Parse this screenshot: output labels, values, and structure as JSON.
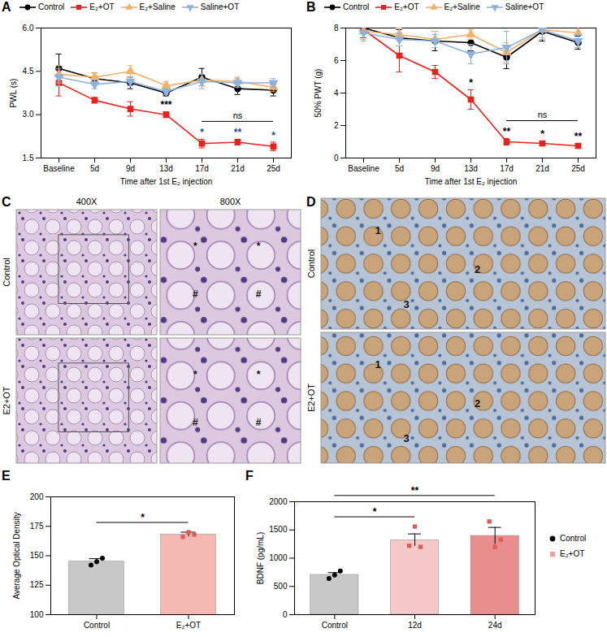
{
  "chart_data": [
    {
      "panel": "A",
      "type": "line",
      "categories": [
        "Baseline",
        "5d",
        "9d",
        "13d",
        "17d",
        "21d",
        "25d"
      ],
      "xlabel": "Time after 1st E₂ injection",
      "ylabel": "PWL (s)",
      "ylim": [
        1.5,
        6.0
      ],
      "yticks": [
        1.5,
        {
          "value": 3,
          "label": "3.0"
        },
        4.5,
        {
          "value": 6,
          "label": "6.0"
        }
      ],
      "legend": "top",
      "series": [
        {
          "name": "Control",
          "color": "#000000",
          "marker": "circle",
          "values": [
            4.6,
            4.25,
            4.1,
            3.75,
            4.3,
            3.9,
            3.85
          ],
          "errors": [
            0.5,
            0.2,
            0.2,
            0.1,
            0.3,
            0.2,
            0.2
          ]
        },
        {
          "name": "E₂+OT",
          "color": "#e8231e",
          "marker": "square",
          "values": [
            4.1,
            3.5,
            3.2,
            3.0,
            2.0,
            2.05,
            1.9
          ],
          "errors": [
            0.45,
            0.1,
            0.25,
            0.1,
            0.15,
            0.1,
            0.15
          ]
        },
        {
          "name": "E₂+Saline",
          "color": "#f5b06a",
          "marker": "triangle",
          "values": [
            4.4,
            4.3,
            4.5,
            4.0,
            4.2,
            4.15,
            3.95
          ],
          "errors": [
            0.3,
            0.15,
            0.2,
            0.15,
            0.2,
            0.15,
            0.15
          ]
        },
        {
          "name": "Saline+OT",
          "color": "#8eb1dd",
          "marker": "triangle-down",
          "values": [
            4.3,
            4.05,
            4.15,
            3.8,
            4.15,
            4.1,
            4.1
          ],
          "errors": [
            0.3,
            0.15,
            0.15,
            0.1,
            0.25,
            0.15,
            0.15
          ]
        }
      ],
      "annotations": [
        {
          "text": "***",
          "x": "13d",
          "series": "E₂+OT",
          "color": "#000000"
        },
        {
          "text": "*",
          "x": "17d",
          "series": "E₂+OT",
          "color": "#1f4e9c"
        },
        {
          "text": "**",
          "x": "21d",
          "series": "E₂+OT",
          "color": "#1f4e9c"
        },
        {
          "text": "*",
          "x": "25d",
          "series": "E₂+OT",
          "color": "#1f4e9c"
        },
        {
          "text": "ns",
          "x": [
            "17d",
            "25d"
          ],
          "series": "E₂+OT",
          "color": "#000000"
        }
      ]
    },
    {
      "panel": "B",
      "type": "line",
      "categories": [
        "Baseline",
        "5d",
        "9d",
        "13d",
        "17d",
        "21d",
        "25d"
      ],
      "xlabel": "Time after 1st E₂ injection",
      "ylabel": "50% PWT (g)",
      "ylim": [
        0,
        8
      ],
      "yticks": [
        0,
        2,
        4,
        6,
        8
      ],
      "legend": "top",
      "series": [
        {
          "name": "Control",
          "color": "#000000",
          "marker": "circle",
          "values": [
            8.0,
            7.4,
            7.2,
            7.1,
            6.2,
            7.8,
            7.1
          ],
          "errors": [
            0.6,
            0.5,
            0.6,
            0.5,
            0.7,
            0.6,
            0.4
          ]
        },
        {
          "name": "E₂+OT",
          "color": "#e8231e",
          "marker": "square",
          "values": [
            7.9,
            6.3,
            5.3,
            3.6,
            1.0,
            0.9,
            0.75
          ],
          "errors": [
            0.5,
            1.0,
            0.4,
            0.6,
            0.2,
            0.15,
            0.15
          ]
        },
        {
          "name": "E₂+Saline",
          "color": "#f5b06a",
          "marker": "triangle",
          "values": [
            7.8,
            7.6,
            7.3,
            7.6,
            6.5,
            7.9,
            7.7
          ],
          "errors": [
            0.5,
            0.4,
            0.5,
            0.3,
            0.6,
            0.5,
            0.4
          ]
        },
        {
          "name": "Saline+OT",
          "color": "#8eb1dd",
          "marker": "triangle-down",
          "values": [
            7.7,
            7.3,
            7.2,
            6.4,
            6.8,
            7.9,
            7.2
          ],
          "errors": [
            0.5,
            0.4,
            0.4,
            0.6,
            1.0,
            0.6,
            0.4
          ]
        }
      ],
      "annotations": [
        {
          "text": "*",
          "x": "13d",
          "series": "E₂+OT",
          "color": "#000000"
        },
        {
          "text": "**",
          "x": "17d",
          "series": "E₂+OT",
          "color": "#000000"
        },
        {
          "text": "*",
          "x": "21d",
          "series": "E₂+OT",
          "color": "#000000"
        },
        {
          "text": "**",
          "x": "25d",
          "series": "E₂+OT",
          "color": "#000000"
        },
        {
          "text": "ns",
          "x": [
            "17d",
            "25d"
          ],
          "series": "E₂+OT",
          "color": "#000000"
        }
      ]
    },
    {
      "panel": "C",
      "type": "image",
      "columns": [
        "400X",
        "800X"
      ],
      "rows": [
        "Control",
        "E2+OT"
      ],
      "symbols": [
        "*",
        "#"
      ]
    },
    {
      "panel": "D",
      "type": "image",
      "rows": [
        "Control",
        "E2+OT"
      ],
      "labels": [
        "1",
        "2",
        "3"
      ]
    },
    {
      "panel": "E",
      "type": "bar",
      "categories": [
        "Control",
        "E₂+OT"
      ],
      "values": [
        145,
        168
      ],
      "errors": [
        2.5,
        2
      ],
      "points": [
        [
          142,
          145,
          148
        ],
        [
          166,
          170,
          168
        ]
      ],
      "colors": [
        "#c8c8c8",
        "#f4b9b3"
      ],
      "point_colors": [
        "#000000",
        "#e05a5a"
      ],
      "markers": [
        "circle",
        "square"
      ],
      "ylabel": "Average Optical Density",
      "ylim": [
        100,
        200
      ],
      "yticks": [
        100,
        125,
        150,
        175,
        200
      ],
      "annotations": [
        {
          "text": "*",
          "x": [
            "Control",
            "E₂+OT"
          ]
        }
      ]
    },
    {
      "panel": "F",
      "type": "bar",
      "categories": [
        "Control",
        "12d",
        "24d"
      ],
      "values": [
        705,
        1320,
        1395
      ],
      "errors": [
        40,
        110,
        150
      ],
      "points": [
        [
          640,
          700,
          775
        ],
        [
          1220,
          1560,
          1200
        ],
        [
          1650,
          1200,
          1330
        ]
      ],
      "colors": [
        "#c8c8c8",
        "#f6c9c9",
        "#e88e8e"
      ],
      "point_colors": [
        "#000000",
        "#e05a5a",
        "#e05a5a"
      ],
      "markers": [
        "circle",
        "square",
        "square"
      ],
      "ylabel": "BDNF (pg/mL)",
      "ylim": [
        0,
        2000
      ],
      "yticks": [
        0,
        500,
        1000,
        1500,
        2000
      ],
      "legend": "right",
      "legend_entries": [
        {
          "name": "Control",
          "color": "#000000",
          "marker": "circle"
        },
        {
          "name": "E₂+OT",
          "color": "#f0a0a0",
          "marker": "square"
        }
      ],
      "annotations": [
        {
          "text": "*",
          "x": [
            "Control",
            "12d"
          ]
        },
        {
          "text": "**",
          "x": [
            "Control",
            "24d"
          ]
        }
      ]
    }
  ]
}
